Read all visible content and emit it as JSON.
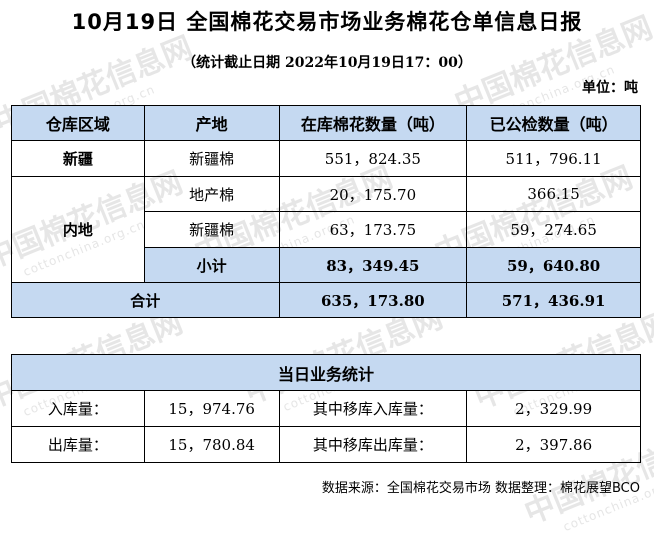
{
  "title": "10月19日 全国棉花交易市场业务棉花仓单信息日报",
  "subtitle": "（统计截止日期 2022年10月19日17：00）",
  "unit": "单位：吨",
  "watermark": "中国棉花信息网",
  "watermark_url": "cottonchina.org.cn",
  "table": {
    "headers": [
      "仓库区域",
      "产地",
      "在库棉花数量（吨）",
      "已公检数量（吨）"
    ],
    "xinjiang": {
      "region": "新疆",
      "origin": "新疆棉",
      "stock": "551，824.35",
      "inspected": "511，796.11"
    },
    "neidi": {
      "region": "内地",
      "rows": [
        {
          "origin": "地产棉",
          "stock": "20，175.70",
          "inspected": "366.15"
        },
        {
          "origin": "新疆棉",
          "stock": "63，173.75",
          "inspected": "59，274.65"
        }
      ],
      "subtotal": {
        "label": "小计",
        "stock": "83，349.45",
        "inspected": "59，640.80"
      }
    },
    "total": {
      "label": "合计",
      "stock": "635，173.80",
      "inspected": "571，436.91"
    }
  },
  "daily": {
    "title": "当日业务统计",
    "rows": [
      {
        "label": "入库量：",
        "value": "15，974.76",
        "sub_label": "其中移库入库量：",
        "sub_value": "2，329.99"
      },
      {
        "label": "出库量：",
        "value": "15，780.84",
        "sub_label": "其中移库出库量：",
        "sub_value": "2，397.86"
      }
    ]
  },
  "source": "数据来源：全国棉花交易市场 数据整理：棉花展望BCO"
}
